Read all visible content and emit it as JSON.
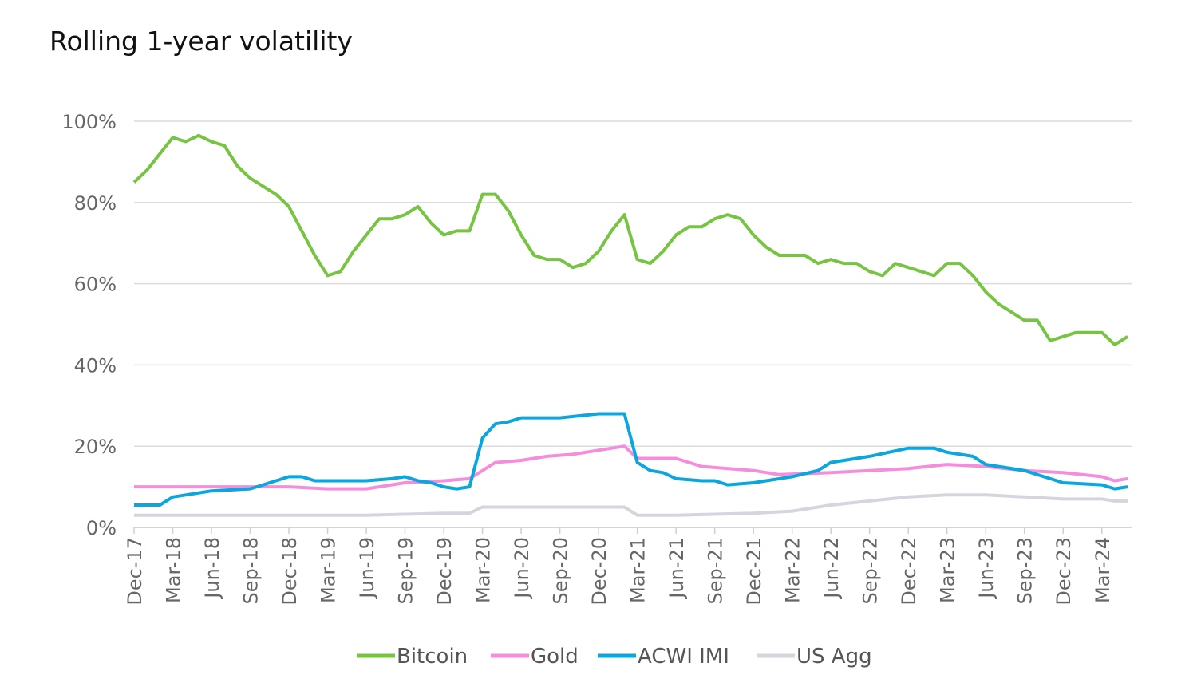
{
  "chart_data": {
    "type": "line",
    "title": "Rolling 1-year volatility",
    "xlabel": "",
    "ylabel": "",
    "ylim": [
      0,
      100
    ],
    "y_ticks": [
      "0%",
      "20%",
      "40%",
      "60%",
      "80%",
      "100%"
    ],
    "y_tick_values": [
      0,
      20,
      40,
      60,
      80,
      100
    ],
    "x_ticks": [
      "Dec-17",
      "Mar-18",
      "Jun-18",
      "Sep-18",
      "Dec-18",
      "Mar-19",
      "Jun-19",
      "Sep-19",
      "Dec-19",
      "Mar-20",
      "Jun-20",
      "Sep-20",
      "Dec-20",
      "Mar-21",
      "Jun-21",
      "Sep-21",
      "Dec-21",
      "Mar-22",
      "Jun-22",
      "Sep-22",
      "Dec-22",
      "Mar-23",
      "Jun-23",
      "Sep-23",
      "Dec-23",
      "Mar-24"
    ],
    "xlim": [
      "Dec-17",
      "May-24"
    ],
    "grid": "horizontal",
    "legend_position": "bottom",
    "series": [
      {
        "name": "Bitcoin",
        "color": "#76c442",
        "points": [
          [
            "Dec-17",
            85
          ],
          [
            "Jan-18",
            88
          ],
          [
            "Feb-18",
            92
          ],
          [
            "Mar-18",
            96
          ],
          [
            "Apr-18",
            95
          ],
          [
            "May-18",
            96.5
          ],
          [
            "Jun-18",
            95
          ],
          [
            "Jul-18",
            94
          ],
          [
            "Aug-18",
            89
          ],
          [
            "Sep-18",
            86
          ],
          [
            "Oct-18",
            84
          ],
          [
            "Nov-18",
            82
          ],
          [
            "Dec-18",
            79
          ],
          [
            "Jan-19",
            73
          ],
          [
            "Feb-19",
            67
          ],
          [
            "Mar-19",
            62
          ],
          [
            "Apr-19",
            63
          ],
          [
            "May-19",
            68
          ],
          [
            "Jun-19",
            72
          ],
          [
            "Jul-19",
            76
          ],
          [
            "Aug-19",
            76
          ],
          [
            "Sep-19",
            77
          ],
          [
            "Oct-19",
            79
          ],
          [
            "Nov-19",
            75
          ],
          [
            "Dec-19",
            72
          ],
          [
            "Jan-20",
            73
          ],
          [
            "Feb-20",
            73
          ],
          [
            "Mar-20",
            82
          ],
          [
            "Apr-20",
            82
          ],
          [
            "May-20",
            78
          ],
          [
            "Jun-20",
            72
          ],
          [
            "Jul-20",
            67
          ],
          [
            "Aug-20",
            66
          ],
          [
            "Sep-20",
            66
          ],
          [
            "Oct-20",
            64
          ],
          [
            "Nov-20",
            65
          ],
          [
            "Dec-20",
            68
          ],
          [
            "Jan-21",
            73
          ],
          [
            "Feb-21",
            77
          ],
          [
            "Mar-21",
            66
          ],
          [
            "Apr-21",
            65
          ],
          [
            "May-21",
            68
          ],
          [
            "Jun-21",
            72
          ],
          [
            "Jul-21",
            74
          ],
          [
            "Aug-21",
            74
          ],
          [
            "Sep-21",
            76
          ],
          [
            "Oct-21",
            77
          ],
          [
            "Nov-21",
            76
          ],
          [
            "Dec-21",
            72
          ],
          [
            "Jan-22",
            69
          ],
          [
            "Feb-22",
            67
          ],
          [
            "Mar-22",
            67
          ],
          [
            "Apr-22",
            67
          ],
          [
            "May-22",
            65
          ],
          [
            "Jun-22",
            66
          ],
          [
            "Jul-22",
            65
          ],
          [
            "Aug-22",
            65
          ],
          [
            "Sep-22",
            63
          ],
          [
            "Oct-22",
            62
          ],
          [
            "Nov-22",
            65
          ],
          [
            "Dec-22",
            64
          ],
          [
            "Jan-23",
            63
          ],
          [
            "Feb-23",
            62
          ],
          [
            "Mar-23",
            65
          ],
          [
            "Apr-23",
            65
          ],
          [
            "May-23",
            62
          ],
          [
            "Jun-23",
            58
          ],
          [
            "Jul-23",
            55
          ],
          [
            "Aug-23",
            53
          ],
          [
            "Sep-23",
            51
          ],
          [
            "Oct-23",
            51
          ],
          [
            "Nov-23",
            46
          ],
          [
            "Dec-23",
            47
          ],
          [
            "Jan-24",
            48
          ],
          [
            "Feb-24",
            48
          ],
          [
            "Mar-24",
            48
          ],
          [
            "Apr-24",
            45
          ],
          [
            "May-24",
            47
          ]
        ]
      },
      {
        "name": "Gold",
        "color": "#f48edc",
        "points": [
          [
            "Dec-17",
            10
          ],
          [
            "Jun-18",
            10
          ],
          [
            "Dec-18",
            10
          ],
          [
            "Mar-19",
            9.5
          ],
          [
            "Jun-19",
            9.5
          ],
          [
            "Sep-19",
            11
          ],
          [
            "Dec-19",
            11.5
          ],
          [
            "Feb-20",
            12
          ],
          [
            "Apr-20",
            16
          ],
          [
            "Jun-20",
            16.5
          ],
          [
            "Aug-20",
            17.5
          ],
          [
            "Oct-20",
            18
          ],
          [
            "Dec-20",
            19
          ],
          [
            "Feb-21",
            20
          ],
          [
            "Mar-21",
            17
          ],
          [
            "Jun-21",
            17
          ],
          [
            "Aug-21",
            15
          ],
          [
            "Dec-21",
            14
          ],
          [
            "Feb-22",
            13
          ],
          [
            "Jun-22",
            13.5
          ],
          [
            "Sep-22",
            14
          ],
          [
            "Dec-22",
            14.5
          ],
          [
            "Mar-23",
            15.5
          ],
          [
            "Jun-23",
            15
          ],
          [
            "Sep-23",
            14
          ],
          [
            "Dec-23",
            13.5
          ],
          [
            "Mar-24",
            12.5
          ],
          [
            "Apr-24",
            11.5
          ],
          [
            "May-24",
            12
          ]
        ]
      },
      {
        "name": "ACWI IMI",
        "color": "#0aa6dc",
        "points": [
          [
            "Dec-17",
            5.5
          ],
          [
            "Feb-18",
            5.5
          ],
          [
            "Mar-18",
            7.5
          ],
          [
            "Apr-18",
            8
          ],
          [
            "Jun-18",
            9
          ],
          [
            "Sep-18",
            9.5
          ],
          [
            "Oct-18",
            10.5
          ],
          [
            "Nov-18",
            11.5
          ],
          [
            "Dec-18",
            12.5
          ],
          [
            "Jan-19",
            12.5
          ],
          [
            "Feb-19",
            11.5
          ],
          [
            "Jun-19",
            11.5
          ],
          [
            "Aug-19",
            12
          ],
          [
            "Sep-19",
            12.5
          ],
          [
            "Oct-19",
            11.5
          ],
          [
            "Nov-19",
            11
          ],
          [
            "Dec-19",
            10
          ],
          [
            "Jan-20",
            9.5
          ],
          [
            "Feb-20",
            10
          ],
          [
            "Mar-20",
            22
          ],
          [
            "Apr-20",
            25.5
          ],
          [
            "May-20",
            26
          ],
          [
            "Jun-20",
            27
          ],
          [
            "Sep-20",
            27
          ],
          [
            "Dec-20",
            28
          ],
          [
            "Feb-21",
            28
          ],
          [
            "Mar-21",
            16
          ],
          [
            "Apr-21",
            14
          ],
          [
            "May-21",
            13.5
          ],
          [
            "Jun-21",
            12
          ],
          [
            "Aug-21",
            11.5
          ],
          [
            "Sep-21",
            11.5
          ],
          [
            "Oct-21",
            10.5
          ],
          [
            "Dec-21",
            11
          ],
          [
            "Mar-22",
            12.5
          ],
          [
            "May-22",
            14
          ],
          [
            "Jun-22",
            16
          ],
          [
            "Sep-22",
            17.5
          ],
          [
            "Dec-22",
            19.5
          ],
          [
            "Feb-23",
            19.5
          ],
          [
            "Mar-23",
            18.5
          ],
          [
            "May-23",
            17.5
          ],
          [
            "Jun-23",
            15.5
          ],
          [
            "Sep-23",
            14
          ],
          [
            "Nov-23",
            12
          ],
          [
            "Dec-23",
            11
          ],
          [
            "Mar-24",
            10.5
          ],
          [
            "Apr-24",
            9.5
          ],
          [
            "May-24",
            10
          ]
        ]
      },
      {
        "name": "US Agg",
        "color": "#d6d5de",
        "points": [
          [
            "Dec-17",
            3
          ],
          [
            "Jun-18",
            3
          ],
          [
            "Dec-18",
            3
          ],
          [
            "Jun-19",
            3
          ],
          [
            "Dec-19",
            3.5
          ],
          [
            "Feb-20",
            3.5
          ],
          [
            "Mar-20",
            5
          ],
          [
            "Dec-20",
            5
          ],
          [
            "Feb-21",
            5
          ],
          [
            "Mar-21",
            3
          ],
          [
            "Jun-21",
            3
          ],
          [
            "Dec-21",
            3.5
          ],
          [
            "Mar-22",
            4
          ],
          [
            "Jun-22",
            5.5
          ],
          [
            "Sep-22",
            6.5
          ],
          [
            "Dec-22",
            7.5
          ],
          [
            "Mar-23",
            8
          ],
          [
            "Jun-23",
            8
          ],
          [
            "Sep-23",
            7.5
          ],
          [
            "Dec-23",
            7
          ],
          [
            "Mar-24",
            7
          ],
          [
            "Apr-24",
            6.5
          ],
          [
            "May-24",
            6.5
          ]
        ]
      }
    ]
  }
}
